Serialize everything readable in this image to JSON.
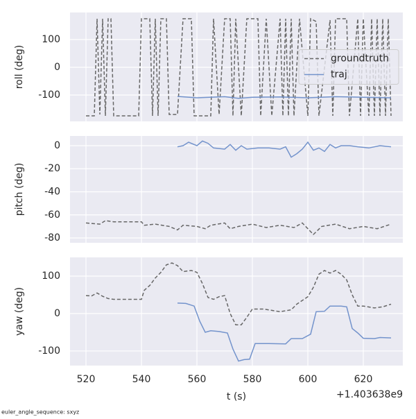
{
  "chart_data": [
    {
      "type": "line",
      "ylabel": "roll (deg)",
      "xlim": [
        514.25,
        634.25
      ],
      "xticks": [
        520,
        540,
        560,
        580,
        600,
        620
      ],
      "ylim": [
        -195,
        197.5
      ],
      "yticks": [
        -100,
        0,
        100
      ],
      "grid": true,
      "legend": "center right",
      "series": [
        {
          "name": "groundtruth",
          "color": "#666666",
          "linestyle": "dashed",
          "x": [
            520,
            523,
            524,
            525,
            526,
            527,
            528,
            529,
            530,
            539,
            540,
            543,
            544,
            545,
            546,
            547,
            549,
            550,
            553,
            555,
            558,
            559,
            565,
            566,
            568,
            570,
            572,
            573,
            574,
            576,
            578,
            582,
            583,
            585,
            587,
            590,
            591,
            592,
            593,
            594,
            595,
            597,
            600,
            601,
            603,
            604,
            608,
            609,
            610,
            614,
            615,
            618,
            619,
            620,
            622,
            623,
            624,
            625,
            626,
            627,
            628,
            629,
            630
          ],
          "values": [
            -175,
            -175,
            175,
            -170,
            175,
            -175,
            175,
            175,
            -175,
            -175,
            175,
            175,
            -175,
            175,
            -175,
            175,
            175,
            -170,
            -170,
            175,
            175,
            -175,
            -175,
            175,
            -170,
            175,
            175,
            -175,
            175,
            -175,
            175,
            175,
            -175,
            175,
            -175,
            175,
            -175,
            175,
            -175,
            175,
            -175,
            175,
            -175,
            175,
            165,
            -175,
            170,
            -175,
            175,
            175,
            -175,
            175,
            -175,
            175,
            -175,
            175,
            -175,
            175,
            -175,
            175,
            -175,
            175,
            -175
          ]
        },
        {
          "name": "traj",
          "color": "#7393cc",
          "linestyle": "solid",
          "x": [
            553,
            560,
            570,
            575,
            580,
            590,
            600,
            610,
            620,
            630
          ],
          "values": [
            -105,
            -110,
            -106,
            -112,
            -108,
            -107,
            -110,
            -106,
            -108,
            -110
          ]
        }
      ]
    },
    {
      "type": "line",
      "ylabel": "pitch (deg)",
      "xlim": [
        514.25,
        634.25
      ],
      "xticks": [
        520,
        540,
        560,
        580,
        600,
        620
      ],
      "ylim": [
        -84.2,
        8.4
      ],
      "yticks": [
        -80,
        -60,
        -40,
        -20,
        0
      ],
      "grid": true,
      "series": [
        {
          "name": "groundtruth",
          "color": "#666666",
          "linestyle": "dashed",
          "x": [
            520,
            525,
            527,
            530,
            535,
            540,
            541,
            545,
            550,
            553,
            555,
            560,
            563,
            565,
            570,
            572,
            575,
            580,
            585,
            590,
            595,
            598,
            600,
            602,
            605,
            610,
            615,
            620,
            625,
            630
          ],
          "values": [
            -67,
            -68,
            -65,
            -66,
            -66,
            -66,
            -69,
            -68,
            -70,
            -73,
            -69,
            -70,
            -72,
            -69,
            -67,
            -72,
            -70,
            -68,
            -71,
            -69,
            -71,
            -67,
            -72,
            -77,
            -70,
            -68,
            -72,
            -70,
            -72,
            -68
          ]
        },
        {
          "name": "traj",
          "color": "#7393cc",
          "linestyle": "solid",
          "x": [
            553,
            555,
            557,
            560,
            562,
            564,
            566,
            570,
            572,
            574,
            576,
            578,
            582,
            586,
            590,
            592,
            594,
            596,
            598,
            600,
            602,
            604,
            606,
            608,
            610,
            612,
            615,
            618,
            622,
            626,
            630
          ],
          "values": [
            -1,
            0,
            3,
            0,
            4,
            2,
            -2,
            -3,
            1,
            -4,
            0,
            -3,
            -2,
            -2,
            -3,
            -1,
            -10,
            -7,
            -3,
            3,
            -4,
            -2,
            -5,
            1,
            -2,
            0,
            0,
            -1,
            -2,
            0,
            -1
          ]
        }
      ]
    },
    {
      "type": "line",
      "ylabel": "yaw (deg)",
      "xlabel": "t (s)",
      "offset_text": "+1.403638e9",
      "xlim": [
        514.25,
        634.25
      ],
      "xticks": [
        520,
        540,
        560,
        580,
        600,
        620
      ],
      "ylim": [
        -139,
        150
      ],
      "yticks": [
        -100,
        0,
        100
      ],
      "grid": true,
      "series": [
        {
          "name": "groundtruth",
          "color": "#666666",
          "linestyle": "dashed",
          "x": [
            520,
            522,
            524,
            526,
            528,
            530,
            535,
            540,
            541,
            543,
            545,
            547,
            549,
            551,
            553,
            555,
            558,
            560,
            562,
            564,
            566,
            568,
            570,
            572,
            574,
            576,
            578,
            580,
            584,
            590,
            594,
            596,
            598,
            600,
            602,
            604,
            606,
            608,
            610,
            612,
            614,
            616,
            618,
            620,
            624,
            627,
            630
          ],
          "values": [
            48,
            47,
            55,
            46,
            40,
            38,
            38,
            38,
            62,
            75,
            95,
            110,
            130,
            135,
            128,
            112,
            115,
            110,
            80,
            43,
            38,
            45,
            48,
            0,
            -30,
            -30,
            -10,
            12,
            12,
            5,
            10,
            25,
            35,
            45,
            70,
            105,
            115,
            108,
            115,
            105,
            90,
            50,
            20,
            20,
            15,
            18,
            25
          ]
        },
        {
          "name": "traj",
          "color": "#7393cc",
          "linestyle": "solid",
          "x": [
            553,
            556,
            559,
            561,
            563,
            565,
            568,
            571,
            573,
            575,
            577,
            579,
            581,
            586,
            592,
            594,
            598,
            601,
            603,
            606,
            608,
            612,
            614,
            616,
            618,
            620,
            624,
            626,
            630
          ],
          "values": [
            28,
            27,
            20,
            -20,
            -50,
            -46,
            -48,
            -52,
            -95,
            -127,
            -123,
            -122,
            -80,
            -80,
            -81,
            -67,
            -67,
            -55,
            5,
            6,
            20,
            20,
            18,
            -40,
            -52,
            -66,
            -67,
            -64,
            -65
          ]
        }
      ]
    }
  ],
  "footer": "euler_angle_sequence: sxyz"
}
